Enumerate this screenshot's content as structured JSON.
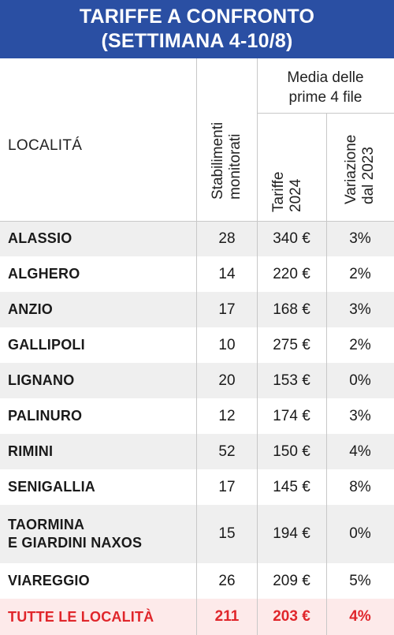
{
  "title": {
    "line1": "TARIFFE A CONFRONTO",
    "line2": "(SETTIMANA 4-10/8)"
  },
  "headers": {
    "localita": "LOCALITÁ",
    "stabilimenti_1": "Stabilimenti",
    "stabilimenti_2": "monitorati",
    "media_1": "Media delle",
    "media_2": "prime 4 file",
    "tariffe_1": "Tariffe",
    "tariffe_2": "2024",
    "variazione_1": "Variazione",
    "variazione_2": "dal 2023"
  },
  "rows": [
    {
      "name": "ALASSIO",
      "stabilimenti": "28",
      "tariffe": "340 €",
      "variazione": "3%"
    },
    {
      "name": "ALGHERO",
      "stabilimenti": "14",
      "tariffe": "220 €",
      "variazione": "2%"
    },
    {
      "name": "ANZIO",
      "stabilimenti": "17",
      "tariffe": "168 €",
      "variazione": "3%"
    },
    {
      "name": "GALLIPOLI",
      "stabilimenti": "10",
      "tariffe": "275 €",
      "variazione": "2%"
    },
    {
      "name": "LIGNANO",
      "stabilimenti": "20",
      "tariffe": "153 €",
      "variazione": "0%"
    },
    {
      "name": "PALINURO",
      "stabilimenti": "12",
      "tariffe": "174 €",
      "variazione": "3%"
    },
    {
      "name": "RIMINI",
      "stabilimenti": "52",
      "tariffe": "150 €",
      "variazione": "4%"
    },
    {
      "name": "SENIGALLIA",
      "stabilimenti": "17",
      "tariffe": "145 €",
      "variazione": "8%"
    },
    {
      "name_line1": "TAORMINA",
      "name_line2": "E GIARDINI NAXOS",
      "stabilimenti": "15",
      "tariffe": "194 €",
      "variazione": "0%"
    },
    {
      "name": "VIAREGGIO",
      "stabilimenti": "26",
      "tariffe": "209 €",
      "variazione": "5%"
    }
  ],
  "total": {
    "name": "TUTTE LE LOCALITÀ",
    "stabilimenti": "211",
    "tariffe": "203 €",
    "variazione": "4%"
  },
  "colors": {
    "header_blue": "#2a4fa3",
    "total_red": "#e0262b",
    "total_bg": "#fdeaea",
    "stripe": "#efefef"
  }
}
